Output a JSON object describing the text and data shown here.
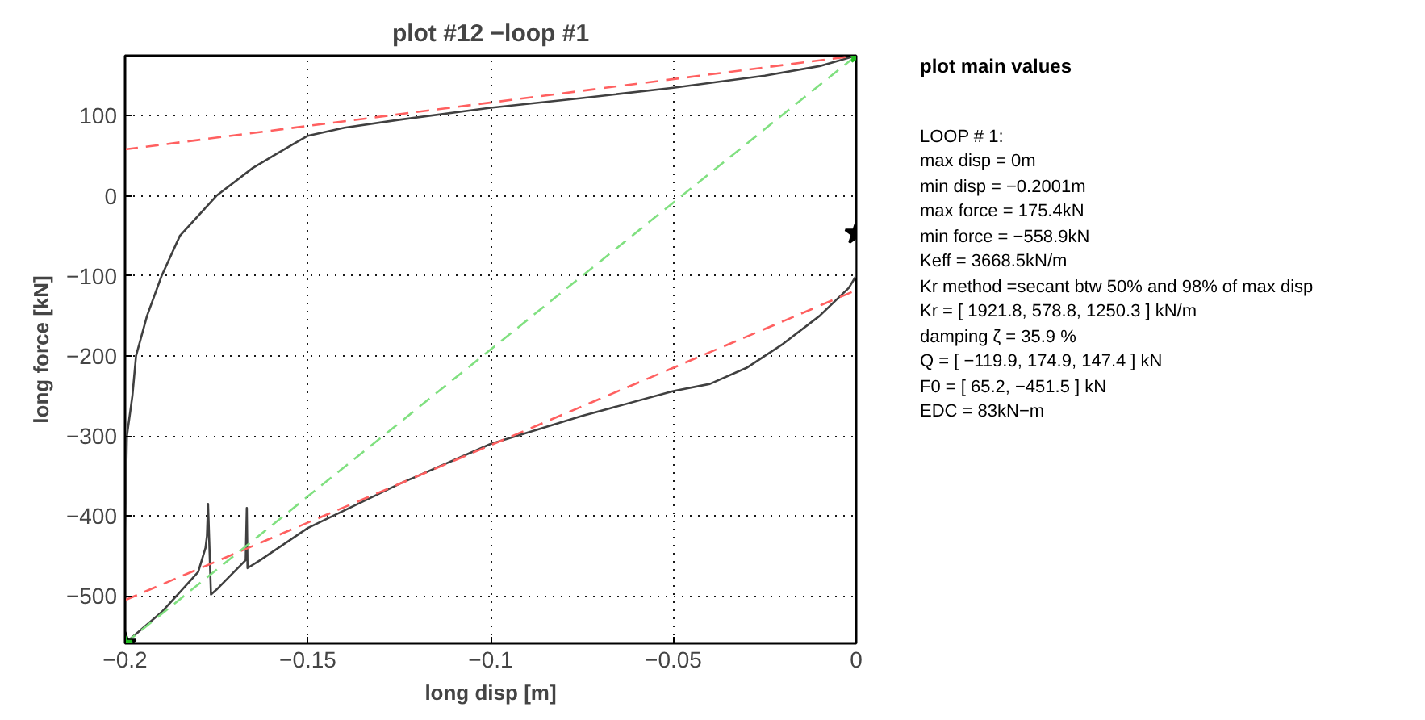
{
  "chart_data": {
    "type": "line",
    "title": "plot #12 −loop #1",
    "xlabel": "long disp [m]",
    "ylabel": "long force [kN]",
    "xlim": [
      -0.2,
      0
    ],
    "ylim": [
      -559,
      175
    ],
    "xticks": [
      -0.2,
      -0.15,
      -0.1,
      -0.05,
      0
    ],
    "yticks": [
      -500,
      -400,
      -300,
      -200,
      -100,
      0,
      100
    ],
    "grid": true,
    "series": [
      {
        "color": "#404040",
        "line_style": "solid",
        "x": [
          0,
          0,
          -0.002,
          -0.01,
          -0.02,
          -0.03,
          -0.04,
          -0.05,
          -0.075,
          -0.1,
          -0.125,
          -0.15,
          -0.163,
          -0.1665,
          -0.1667,
          -0.167,
          -0.175,
          -0.1765,
          -0.1773,
          -0.1776,
          -0.178,
          -0.18,
          -0.185,
          -0.19,
          -0.2,
          -0.2,
          -0.1995,
          -0.198,
          -0.197,
          -0.194,
          -0.19,
          -0.185,
          -0.175,
          -0.165,
          -0.155,
          -0.15,
          -0.14,
          -0.125,
          -0.1,
          -0.075,
          -0.05,
          -0.025,
          -0.01,
          0
        ],
        "values": [
          -47,
          -100,
          -115,
          -150,
          -185,
          -215,
          -235,
          -244,
          -275,
          -310,
          -360,
          -415,
          -455,
          -465,
          -390,
          -455,
          -492,
          -498,
          -385,
          -425,
          -440,
          -470,
          -495,
          -520,
          -559,
          -420,
          -300,
          -250,
          -200,
          -150,
          -100,
          -50,
          0,
          35,
          62,
          75,
          85,
          95,
          110,
          122,
          135,
          150,
          162,
          175
        ]
      },
      {
        "color": "#ff6060",
        "line_style": "dashed",
        "x": [
          -0.2,
          0
        ],
        "values": [
          58,
          175
        ]
      },
      {
        "color": "#ff6060",
        "line_style": "dashed",
        "x": [
          -0.2,
          0
        ],
        "values": [
          -505,
          -118
        ]
      },
      {
        "color": "#80e080",
        "line_style": "dashed",
        "x": [
          -0.2,
          0
        ],
        "values": [
          -559,
          175
        ]
      },
      {
        "type": "scatter",
        "marker": "star",
        "color": "#000000",
        "x": [
          -0.2,
          0
        ],
        "values": [
          -559,
          -47
        ]
      },
      {
        "type": "scatter",
        "marker": "star",
        "color": "#22bb22",
        "x": [
          -0.2,
          0
        ],
        "values": [
          -559,
          175
        ]
      }
    ],
    "annotations": [
      "plot main values",
      "LOOP # 1:",
      "max disp = 0m",
      "min disp = −0.2001m",
      "max force = 175.4kN",
      "min force = −558.9kN",
      "Keff = 3668.5kN/m",
      "Kr method =secant btw 50% and 98% of max disp",
      "Kr = [ 1921.8, 578.8, 1250.3 ] kN/m",
      "damping ζ = 35.9 %",
      "Q = [ −119.9, 174.9, 147.4 ] kN",
      "F0 = [ 65.2, −451.5 ] kN",
      "EDC = 83kN−m"
    ]
  }
}
